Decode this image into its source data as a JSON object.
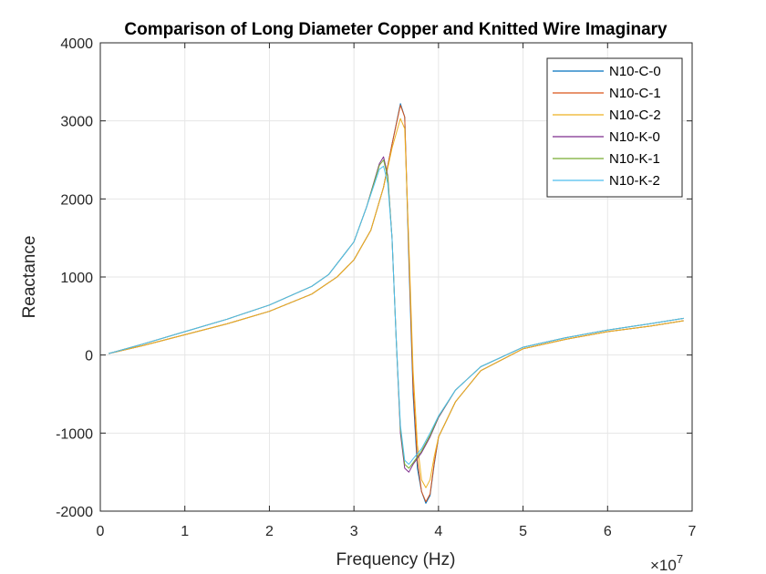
{
  "chart_data": {
    "type": "line",
    "title": "Comparison of Long Diameter Copper and Knitted Wire Imaginary",
    "xlabel": "Frequency (Hz)",
    "ylabel": "Reactance",
    "x_exponent_base": "×10",
    "x_exponent_power": "7",
    "xlim": [
      0,
      7
    ],
    "ylim": [
      -2000,
      4000
    ],
    "x_ticks": [
      0,
      1,
      2,
      3,
      4,
      5,
      6,
      7
    ],
    "x_tick_labels": [
      "0",
      "1",
      "2",
      "3",
      "4",
      "5",
      "6",
      "7"
    ],
    "y_ticks": [
      -2000,
      -1000,
      0,
      1000,
      2000,
      3000,
      4000
    ],
    "y_tick_labels": [
      "-2000",
      "-1000",
      "0",
      "1000",
      "2000",
      "3000",
      "4000"
    ],
    "grid": true,
    "legend_position": "top-right",
    "series": [
      {
        "name": "N10-C-0",
        "color": "#0072BD",
        "points": [
          [
            0.1,
            20
          ],
          [
            0.5,
            120
          ],
          [
            1,
            260
          ],
          [
            1.5,
            400
          ],
          [
            2,
            560
          ],
          [
            2.5,
            780
          ],
          [
            2.8,
            1000
          ],
          [
            3.0,
            1220
          ],
          [
            3.2,
            1600
          ],
          [
            3.35,
            2150
          ],
          [
            3.45,
            2700
          ],
          [
            3.55,
            3220
          ],
          [
            3.6,
            3050
          ],
          [
            3.65,
            1200
          ],
          [
            3.7,
            -500
          ],
          [
            3.75,
            -1450
          ],
          [
            3.8,
            -1750
          ],
          [
            3.85,
            -1900
          ],
          [
            3.9,
            -1800
          ],
          [
            3.95,
            -1400
          ],
          [
            4.0,
            -1050
          ],
          [
            4.2,
            -600
          ],
          [
            4.5,
            -200
          ],
          [
            5,
            80
          ],
          [
            5.5,
            200
          ],
          [
            6,
            300
          ],
          [
            6.5,
            370
          ],
          [
            6.9,
            440
          ]
        ]
      },
      {
        "name": "N10-C-1",
        "color": "#D95319",
        "points": [
          [
            0.1,
            20
          ],
          [
            0.5,
            120
          ],
          [
            1,
            260
          ],
          [
            1.5,
            400
          ],
          [
            2,
            560
          ],
          [
            2.5,
            780
          ],
          [
            2.8,
            1000
          ],
          [
            3.0,
            1220
          ],
          [
            3.2,
            1600
          ],
          [
            3.35,
            2150
          ],
          [
            3.45,
            2700
          ],
          [
            3.55,
            3200
          ],
          [
            3.6,
            3050
          ],
          [
            3.65,
            1300
          ],
          [
            3.7,
            -400
          ],
          [
            3.75,
            -1350
          ],
          [
            3.8,
            -1750
          ],
          [
            3.85,
            -1880
          ],
          [
            3.9,
            -1780
          ],
          [
            3.95,
            -1380
          ],
          [
            4.0,
            -1050
          ],
          [
            4.2,
            -600
          ],
          [
            4.5,
            -200
          ],
          [
            5,
            80
          ],
          [
            5.5,
            200
          ],
          [
            6,
            300
          ],
          [
            6.5,
            370
          ],
          [
            6.9,
            440
          ]
        ]
      },
      {
        "name": "N10-C-2",
        "color": "#EDB120",
        "points": [
          [
            0.1,
            20
          ],
          [
            0.5,
            120
          ],
          [
            1,
            260
          ],
          [
            1.5,
            400
          ],
          [
            2,
            560
          ],
          [
            2.5,
            780
          ],
          [
            2.8,
            1000
          ],
          [
            3.0,
            1220
          ],
          [
            3.2,
            1600
          ],
          [
            3.35,
            2150
          ],
          [
            3.45,
            2650
          ],
          [
            3.55,
            3030
          ],
          [
            3.6,
            2900
          ],
          [
            3.65,
            1400
          ],
          [
            3.7,
            -200
          ],
          [
            3.75,
            -1150
          ],
          [
            3.8,
            -1600
          ],
          [
            3.85,
            -1700
          ],
          [
            3.9,
            -1600
          ],
          [
            3.95,
            -1300
          ],
          [
            4.0,
            -1050
          ],
          [
            4.2,
            -600
          ],
          [
            4.5,
            -200
          ],
          [
            5,
            80
          ],
          [
            5.5,
            200
          ],
          [
            6,
            300
          ],
          [
            6.5,
            370
          ],
          [
            6.9,
            440
          ]
        ]
      },
      {
        "name": "N10-K-0",
        "color": "#7E2F8E",
        "points": [
          [
            0.1,
            20
          ],
          [
            0.5,
            140
          ],
          [
            1,
            300
          ],
          [
            1.5,
            460
          ],
          [
            2,
            640
          ],
          [
            2.5,
            880
          ],
          [
            2.7,
            1030
          ],
          [
            3.0,
            1450
          ],
          [
            3.15,
            1900
          ],
          [
            3.3,
            2450
          ],
          [
            3.35,
            2540
          ],
          [
            3.4,
            2300
          ],
          [
            3.45,
            1500
          ],
          [
            3.5,
            200
          ],
          [
            3.55,
            -1000
          ],
          [
            3.6,
            -1450
          ],
          [
            3.65,
            -1500
          ],
          [
            3.7,
            -1400
          ],
          [
            3.8,
            -1250
          ],
          [
            3.9,
            -1050
          ],
          [
            4.0,
            -800
          ],
          [
            4.2,
            -450
          ],
          [
            4.5,
            -150
          ],
          [
            5,
            100
          ],
          [
            5.5,
            220
          ],
          [
            6,
            320
          ],
          [
            6.5,
            400
          ],
          [
            6.9,
            470
          ]
        ]
      },
      {
        "name": "N10-K-1",
        "color": "#77AC30",
        "points": [
          [
            0.1,
            20
          ],
          [
            0.5,
            140
          ],
          [
            1,
            300
          ],
          [
            1.5,
            460
          ],
          [
            2,
            640
          ],
          [
            2.5,
            880
          ],
          [
            2.7,
            1030
          ],
          [
            3.0,
            1450
          ],
          [
            3.15,
            1900
          ],
          [
            3.3,
            2430
          ],
          [
            3.35,
            2500
          ],
          [
            3.4,
            2280
          ],
          [
            3.45,
            1500
          ],
          [
            3.5,
            200
          ],
          [
            3.55,
            -950
          ],
          [
            3.6,
            -1400
          ],
          [
            3.65,
            -1450
          ],
          [
            3.7,
            -1380
          ],
          [
            3.8,
            -1230
          ],
          [
            3.9,
            -1030
          ],
          [
            4.0,
            -790
          ],
          [
            4.2,
            -450
          ],
          [
            4.5,
            -150
          ],
          [
            5,
            100
          ],
          [
            5.5,
            220
          ],
          [
            6,
            320
          ],
          [
            6.5,
            400
          ],
          [
            6.9,
            470
          ]
        ]
      },
      {
        "name": "N10-K-2",
        "color": "#4DBEEE",
        "points": [
          [
            0.1,
            20
          ],
          [
            0.5,
            140
          ],
          [
            1,
            300
          ],
          [
            1.5,
            460
          ],
          [
            2,
            640
          ],
          [
            2.5,
            880
          ],
          [
            2.7,
            1030
          ],
          [
            3.0,
            1450
          ],
          [
            3.15,
            1900
          ],
          [
            3.3,
            2380
          ],
          [
            3.35,
            2420
          ],
          [
            3.4,
            2200
          ],
          [
            3.45,
            1500
          ],
          [
            3.5,
            200
          ],
          [
            3.55,
            -900
          ],
          [
            3.6,
            -1350
          ],
          [
            3.65,
            -1400
          ],
          [
            3.7,
            -1330
          ],
          [
            3.8,
            -1200
          ],
          [
            3.9,
            -1000
          ],
          [
            4.0,
            -780
          ],
          [
            4.2,
            -450
          ],
          [
            4.5,
            -150
          ],
          [
            5,
            100
          ],
          [
            5.5,
            220
          ],
          [
            6,
            320
          ],
          [
            6.5,
            400
          ],
          [
            6.9,
            470
          ]
        ]
      }
    ]
  }
}
